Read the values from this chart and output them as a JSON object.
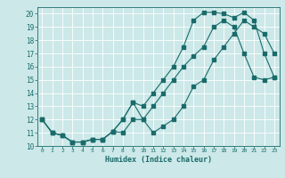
{
  "xlabel": "Humidex (Indice chaleur)",
  "bg_color": "#cce8e8",
  "grid_color": "#ffffff",
  "line_color": "#1a6b6b",
  "xlim": [
    -0.5,
    23.5
  ],
  "ylim": [
    10,
    20.5
  ],
  "yticks": [
    10,
    11,
    12,
    13,
    14,
    15,
    16,
    17,
    18,
    19,
    20
  ],
  "xticks": [
    0,
    1,
    2,
    3,
    4,
    5,
    6,
    7,
    8,
    9,
    10,
    11,
    12,
    13,
    14,
    15,
    16,
    17,
    18,
    19,
    20,
    21,
    22,
    23
  ],
  "line1_y": [
    12,
    11,
    10.8,
    10.3,
    10.3,
    10.5,
    10.5,
    11.1,
    12,
    13.3,
    12,
    11,
    11.5,
    12,
    13,
    14.5,
    15,
    16.5,
    17.5,
    18.5,
    19.5,
    19,
    18.5,
    17
  ],
  "line2_y": [
    12,
    11,
    10.8,
    10.3,
    10.3,
    10.5,
    10.5,
    11.1,
    12,
    13.3,
    13,
    14,
    15,
    16,
    17.5,
    19.5,
    20.1,
    20.1,
    20,
    19.7,
    20.1,
    19.5,
    17,
    15.2
  ],
  "line3_y": [
    12,
    11,
    10.8,
    10.3,
    10.3,
    10.5,
    10.5,
    11.1,
    11,
    12,
    12,
    13,
    14,
    15,
    16,
    16.8,
    17.5,
    19,
    19.5,
    19,
    17,
    15.2,
    15,
    15.2
  ]
}
